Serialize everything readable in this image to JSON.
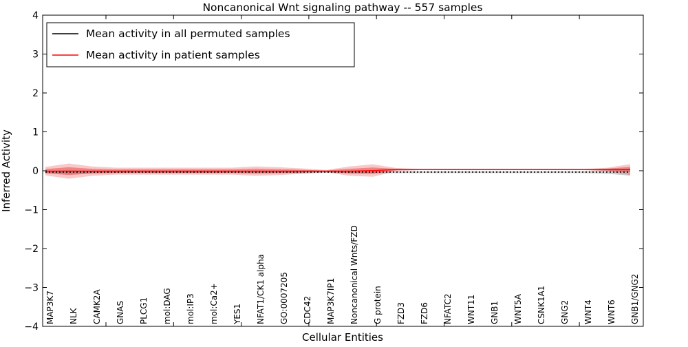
{
  "chart_data": {
    "type": "line",
    "title": "Noncanonical Wnt signaling pathway -- 557 samples",
    "xlabel": "Cellular Entities",
    "ylabel": "Inferred Activity",
    "ylim": [
      -4,
      4
    ],
    "ytick_values": [
      4,
      3,
      2,
      1,
      0,
      -1,
      -2,
      -3,
      -4
    ],
    "ytick_labels": [
      "4",
      "3",
      "2",
      "1",
      "0",
      "−1",
      "−2",
      "−3",
      "−4"
    ],
    "grid": false,
    "categories": [
      "MAP3K7",
      "NLK",
      "CAMK2A",
      "GNAS",
      "PLCG1",
      "mol:DAG",
      "mol:IP3",
      "mol:Ca2+",
      "YES1",
      "NFAT1/CK1 alpha",
      "GO:0007205",
      "CDC42",
      "MAP3K7IP1",
      "Noncanonical Wnts/FZD",
      "G protein",
      "FZD3",
      "FZD6",
      "NFATC2",
      "WNT11",
      "GNB1",
      "WNT5A",
      "CSNK1A1",
      "GNG2",
      "WNT4",
      "WNT6",
      "GNB1/GNG2"
    ],
    "series": [
      {
        "name": "Mean activity in all permuted samples",
        "color": "#000000",
        "style": "dashed",
        "values": [
          -0.035,
          -0.035,
          -0.035,
          -0.035,
          -0.035,
          -0.035,
          -0.035,
          -0.035,
          -0.035,
          -0.035,
          -0.035,
          -0.035,
          -0.035,
          -0.035,
          -0.035,
          -0.035,
          -0.035,
          -0.035,
          -0.035,
          -0.035,
          -0.035,
          -0.035,
          -0.035,
          -0.035,
          -0.035,
          -0.035
        ]
      },
      {
        "name": "Mean activity in patient samples",
        "color": "#ff0000",
        "style": "solid",
        "values": [
          -0.01,
          -0.01,
          -0.01,
          -0.01,
          -0.01,
          -0.01,
          -0.01,
          -0.01,
          -0.01,
          -0.01,
          -0.01,
          -0.01,
          -0.01,
          -0.01,
          0.005,
          0.03,
          0.03,
          0.03,
          0.03,
          0.03,
          0.03,
          0.03,
          0.03,
          0.03,
          0.03,
          0.03
        ]
      }
    ],
    "bands": {
      "outer_half_width": [
        0.11,
        0.195,
        0.12,
        0.09,
        0.09,
        0.09,
        0.09,
        0.09,
        0.09,
        0.12,
        0.1,
        0.07,
        0.03,
        0.12,
        0.16,
        0.04,
        0.015,
        0.015,
        0.015,
        0.015,
        0.015,
        0.015,
        0.015,
        0.015,
        0.045,
        0.14
      ],
      "inner_half_width": [
        0.055,
        0.1,
        0.06,
        0.045,
        0.045,
        0.045,
        0.045,
        0.045,
        0.045,
        0.06,
        0.05,
        0.035,
        0.018,
        0.06,
        0.08,
        0.02,
        0.008,
        0.008,
        0.008,
        0.008,
        0.008,
        0.008,
        0.008,
        0.008,
        0.025,
        0.07
      ],
      "gray_half_width": [
        0.03,
        0.045,
        0.03,
        0.03,
        0.03,
        0.03,
        0.03,
        0.03,
        0.03,
        0.03,
        0.03,
        0.03,
        0.02,
        0.03,
        0.035,
        0.03,
        0.025,
        0.025,
        0.025,
        0.025,
        0.025,
        0.025,
        0.025,
        0.025,
        0.045,
        0.09
      ],
      "outer_fill": "rgba(230,40,40,0.25)",
      "inner_fill": "rgba(225,35,35,0.40)",
      "gray_fill": "rgba(120,120,120,0.35)"
    },
    "legend": {
      "position": "upper left",
      "entries": [
        {
          "label": "Mean activity in all permuted samples",
          "color": "#000000"
        },
        {
          "label": "Mean activity in patient samples",
          "color": "#ff0000"
        }
      ]
    },
    "colors": {
      "frame": "#000000",
      "background": "#ffffff",
      "patient_line": "#ff0000",
      "permuted_line": "#000000"
    }
  }
}
